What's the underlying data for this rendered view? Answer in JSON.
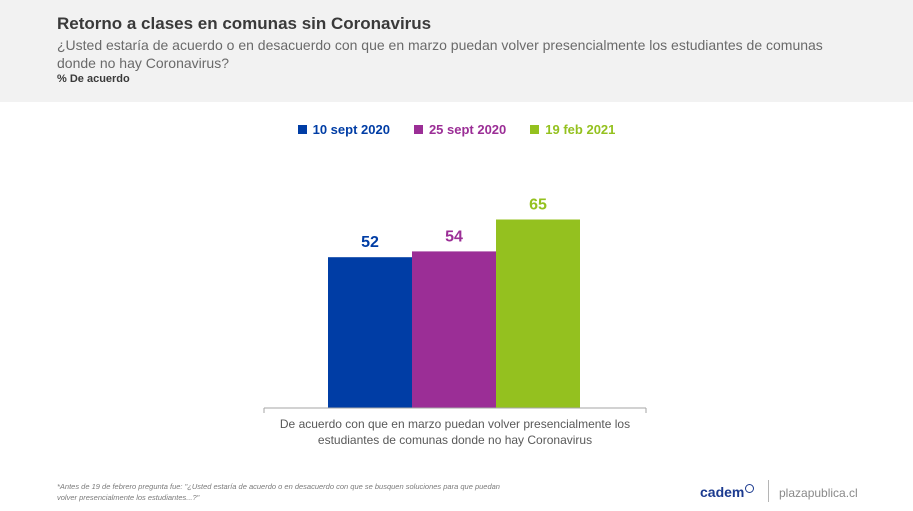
{
  "header": {
    "title": "Retorno a clases en comunas sin Coronavirus",
    "subtitle": "¿Usted estaría de acuerdo o en desacuerdo con que en marzo puedan volver presencialmente los estudiantes de comunas donde no hay Coronavirus?",
    "unit": "% De acuerdo"
  },
  "chart_data": {
    "type": "bar",
    "categories": [
      "De acuerdo con que en marzo puedan volver presencialmente los estudiantes de comunas donde no hay Coronavirus"
    ],
    "series": [
      {
        "name": "10 sept 2020",
        "values": [
          52
        ],
        "color": "#003da5"
      },
      {
        "name": "25 sept 2020",
        "values": [
          54
        ],
        "color": "#9b2e96"
      },
      {
        "name": "19 feb 2021",
        "values": [
          65
        ],
        "color": "#94c11f"
      }
    ],
    "ylim": [
      0,
      100
    ],
    "grid": false,
    "legend": "top-center",
    "data_labels": true,
    "category_label_lines": [
      "De acuerdo con que en marzo puedan volver presencialmente los",
      "estudiantes de comunas donde no hay Coronavirus"
    ]
  },
  "footer": {
    "note_line1": "*Antes de 19 de febrero pregunta fue: \"¿Usted estaría de acuerdo o en desacuerdo con que se busquen soluciones para que puedan",
    "note_line2": "volver presencialmente los estudiantes...?\"",
    "brand_cadem": "cadem",
    "brand_site": "plazapublica.cl"
  }
}
